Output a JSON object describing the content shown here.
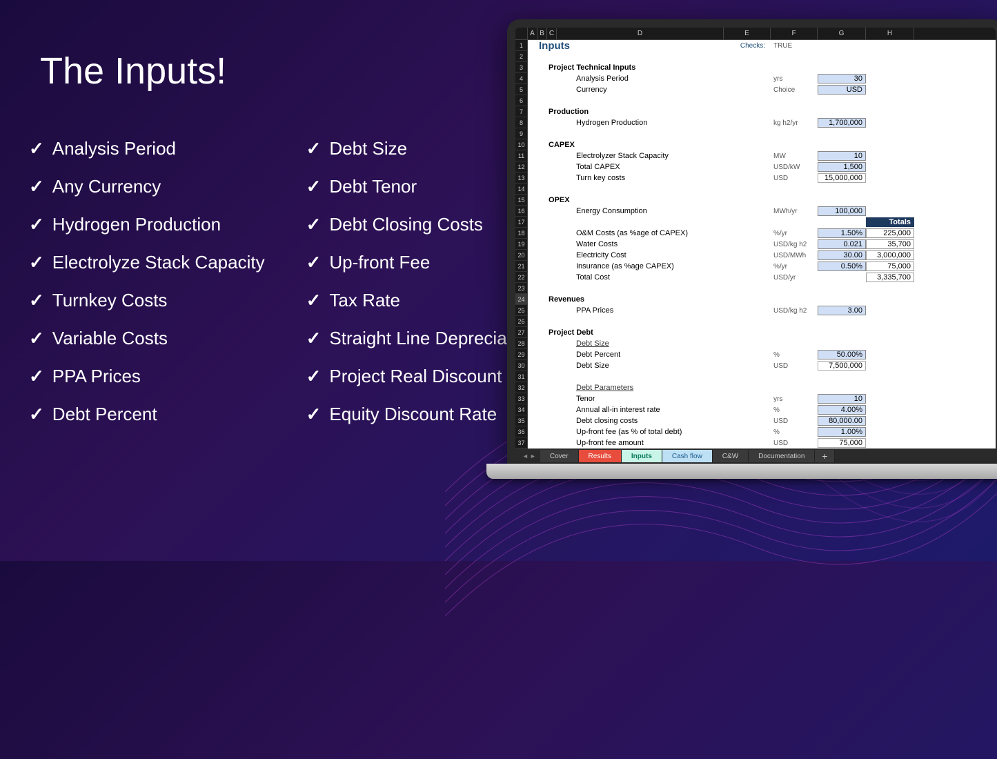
{
  "title": "The Inputs!",
  "checklist": {
    "col1": [
      "Analysis Period",
      "Any Currency",
      "Hydrogen Production",
      "Electrolyze Stack Capacity",
      "Turnkey Costs",
      "Variable Costs",
      "PPA Prices",
      "Debt Percent"
    ],
    "col2": [
      "Debt Size",
      "Debt Tenor",
      "Debt Closing Costs",
      "Up-front Fee",
      "Tax Rate",
      "Straight Line Depreciation",
      "Project Real Discount Rate",
      "Equity Discount Rate"
    ]
  },
  "spreadsheet": {
    "columns": [
      "A",
      "B",
      "C",
      "D",
      "E",
      "F",
      "G",
      "H"
    ],
    "row_count": 37,
    "sheet_title": "Inputs",
    "checks_label": "Checks:",
    "checks_value": "TRUE",
    "totals_header": "Totals",
    "sections": {
      "tech": "Project Technical Inputs",
      "production": "Production",
      "capex": "CAPEX",
      "opex": "OPEX",
      "revenues": "Revenues",
      "debt": "Project Debt",
      "debt_size_sub": "Debt Size",
      "debt_params_sub": "Debt Parameters"
    },
    "rows": {
      "analysis_period": {
        "label": "Analysis Period",
        "unit": "yrs",
        "value": "30",
        "input": true
      },
      "currency": {
        "label": "Currency",
        "unit": "Choice",
        "value": "USD",
        "input": true
      },
      "h2_production": {
        "label": "Hydrogen Production",
        "unit": "kg h2/yr",
        "value": "1,700,000",
        "input": true
      },
      "stack_capacity": {
        "label": "Electrolyzer Stack Capacity",
        "unit": "MW",
        "value": "10",
        "input": true
      },
      "total_capex": {
        "label": "Total CAPEX",
        "unit": "USD/kW",
        "value": "1,500",
        "input": true
      },
      "turnkey": {
        "label": "Turn key costs",
        "unit": "USD",
        "value": "15,000,000",
        "input": false
      },
      "energy_cons": {
        "label": "Energy Consumption",
        "unit": "MWh/yr",
        "value": "100,000",
        "input": true
      },
      "om_costs": {
        "label": "O&M Costs (as %age of CAPEX)",
        "unit": "%/yr",
        "value": "1.50%",
        "input": true,
        "total": "225,000"
      },
      "water_costs": {
        "label": "Water Costs",
        "unit": "USD/kg h2",
        "value": "0.021",
        "input": true,
        "total": "35,700"
      },
      "elec_cost": {
        "label": "Electricity Cost",
        "unit": "USD/MWh",
        "value": "30.00",
        "input": true,
        "total": "3,000,000"
      },
      "insurance": {
        "label": "Insurance (as %age CAPEX)",
        "unit": "%/yr",
        "value": "0.50%",
        "input": true,
        "total": "75,000"
      },
      "total_cost": {
        "label": "Total Cost",
        "unit": "USD/yr",
        "value": "",
        "total": "3,335,700"
      },
      "ppa_prices": {
        "label": "PPA Prices",
        "unit": "USD/kg h2",
        "value": "3.00",
        "input": true
      },
      "debt_percent": {
        "label": "Debt Percent",
        "unit": "%",
        "value": "50.00%",
        "input": true
      },
      "debt_size": {
        "label": "Debt Size",
        "unit": "USD",
        "value": "7,500,000",
        "input": false
      },
      "tenor": {
        "label": "Tenor",
        "unit": "yrs",
        "value": "10",
        "input": true
      },
      "interest": {
        "label": "Annual all-in interest rate",
        "unit": "%",
        "value": "4.00%",
        "input": true
      },
      "closing_costs": {
        "label": "Debt closing costs",
        "unit": "USD",
        "value": "80,000.00",
        "input": true
      },
      "upfront_fee": {
        "label": "Up-front fee (as % of total debt)",
        "unit": "%",
        "value": "1.00%",
        "input": true
      },
      "upfront_amount": {
        "label": "Up-front fee amount",
        "unit": "USD",
        "value": "75,000",
        "input": false
      }
    },
    "tabs": [
      "Cover",
      "Results",
      "Inputs",
      "Cash flow",
      "C&W",
      "Documentation"
    ]
  }
}
